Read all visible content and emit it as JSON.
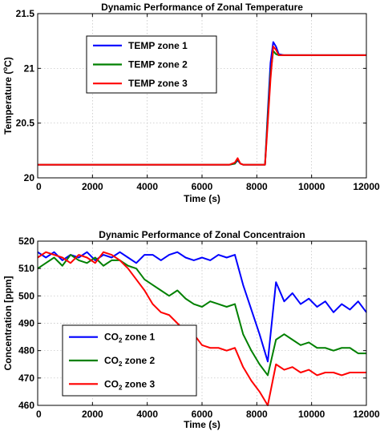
{
  "chart_data": [
    {
      "type": "line",
      "title": "Dynamic Performance of Zonal Temperature",
      "xlabel": "Time (s)",
      "ylabel": "Temperature (",
      "ylabel_sup": "o",
      "ylabel_tail": "C)",
      "xlim": [
        0,
        12000
      ],
      "ylim": [
        20,
        21.5
      ],
      "xticks": [
        0,
        2000,
        4000,
        6000,
        8000,
        10000,
        12000
      ],
      "xtick_labels": [
        "0",
        "2000",
        "4000",
        "6000",
        "8000",
        "10000",
        "12000"
      ],
      "yticks": [
        20,
        20.5,
        21,
        21.5
      ],
      "ytick_labels": [
        "20",
        "20.5",
        "21",
        "21.5"
      ],
      "grid": true,
      "legend_position": "upper-left",
      "series": [
        {
          "name": "TEMP zone 1",
          "color": "#0000ff",
          "x": [
            0,
            7000,
            7200,
            7300,
            7400,
            7500,
            8000,
            8300,
            8400,
            8500,
            8600,
            8700,
            8800,
            9000,
            12000
          ],
          "y": [
            20.12,
            20.12,
            20.13,
            20.16,
            20.13,
            20.12,
            20.12,
            20.12,
            20.6,
            21.05,
            21.24,
            21.2,
            21.13,
            21.12,
            21.12
          ]
        },
        {
          "name": "TEMP zone 2",
          "color": "#008000",
          "x": [
            0,
            7000,
            7200,
            7300,
            7400,
            7500,
            8000,
            8300,
            8400,
            8500,
            8600,
            8700,
            8800,
            9000,
            12000
          ],
          "y": [
            20.12,
            20.12,
            20.13,
            20.17,
            20.13,
            20.12,
            20.12,
            20.12,
            20.55,
            20.95,
            21.16,
            21.13,
            21.12,
            21.12,
            21.12
          ]
        },
        {
          "name": "TEMP zone 3",
          "color": "#ff0000",
          "x": [
            0,
            7000,
            7200,
            7300,
            7400,
            7500,
            8000,
            8300,
            8400,
            8500,
            8600,
            8700,
            8800,
            9000,
            12000
          ],
          "y": [
            20.12,
            20.12,
            20.14,
            20.18,
            20.13,
            20.12,
            20.12,
            20.12,
            20.5,
            20.9,
            21.2,
            21.17,
            21.12,
            21.12,
            21.12
          ]
        }
      ]
    },
    {
      "type": "line",
      "title": "Dynamic Performance of Zonal Concentraion",
      "xlabel": "Time (s)",
      "ylabel": "Concentration [ppm]",
      "xlim": [
        0,
        12000
      ],
      "ylim": [
        460,
        520
      ],
      "xticks": [
        0,
        2000,
        4000,
        6000,
        8000,
        10000,
        12000
      ],
      "xtick_labels": [
        "0",
        "2000",
        "4000",
        "6000",
        "8000",
        "10000",
        "12000"
      ],
      "yticks": [
        460,
        470,
        480,
        490,
        500,
        510,
        520
      ],
      "ytick_labels": [
        "460",
        "470",
        "480",
        "490",
        "500",
        "510",
        "520"
      ],
      "grid": true,
      "legend_position": "lower-left",
      "series": [
        {
          "name": "CO",
          "name_sub": "2",
          "name_tail": " zone 1",
          "color": "#0000ff",
          "x": [
            0,
            300,
            600,
            900,
            1200,
            1500,
            1800,
            2100,
            2400,
            2700,
            3000,
            3300,
            3600,
            3900,
            4200,
            4500,
            4800,
            5100,
            5400,
            5700,
            6000,
            6300,
            6600,
            6900,
            7200,
            7500,
            7800,
            8100,
            8400,
            8700,
            9000,
            9300,
            9600,
            9900,
            10200,
            10500,
            10800,
            11100,
            11400,
            11700,
            12000
          ],
          "y": [
            516,
            514,
            516,
            513,
            515,
            514,
            516,
            513,
            515,
            514,
            516,
            514,
            512,
            515,
            515,
            513,
            515,
            516,
            514,
            513,
            514,
            513,
            515,
            514,
            515,
            504,
            495,
            486,
            476,
            505,
            498,
            501,
            497,
            499,
            496,
            498,
            494,
            497,
            495,
            498,
            494
          ]
        },
        {
          "name": "CO",
          "name_sub": "2",
          "name_tail": " zone 2",
          "color": "#008000",
          "x": [
            0,
            300,
            600,
            900,
            1200,
            1500,
            1800,
            2100,
            2400,
            2700,
            3000,
            3300,
            3600,
            3900,
            4200,
            4500,
            4800,
            5100,
            5400,
            5700,
            6000,
            6300,
            6600,
            6900,
            7200,
            7500,
            7800,
            8100,
            8400,
            8700,
            9000,
            9300,
            9600,
            9900,
            10200,
            10500,
            10800,
            11100,
            11400,
            11700,
            12000
          ],
          "y": [
            510,
            512,
            514,
            511,
            515,
            513,
            512,
            514,
            511,
            513,
            513,
            511,
            510,
            506,
            504,
            502,
            500,
            502,
            499,
            497,
            496,
            498,
            497,
            496,
            497,
            486,
            480,
            475,
            471,
            484,
            486,
            484,
            482,
            483,
            481,
            481,
            480,
            481,
            481,
            479,
            479
          ]
        },
        {
          "name": "CO",
          "name_sub": "2",
          "name_tail": " zone 3",
          "color": "#ff0000",
          "x": [
            0,
            300,
            600,
            900,
            1200,
            1500,
            1800,
            2100,
            2400,
            2700,
            3000,
            3300,
            3600,
            3900,
            4200,
            4500,
            4800,
            5100,
            5400,
            5700,
            6000,
            6300,
            6600,
            6900,
            7200,
            7500,
            7800,
            8100,
            8400,
            8700,
            9000,
            9300,
            9600,
            9900,
            10200,
            10500,
            10800,
            11100,
            11400,
            11700,
            12000
          ],
          "y": [
            514,
            516,
            515,
            514,
            512,
            515,
            514,
            512,
            516,
            515,
            513,
            510,
            506,
            502,
            497,
            494,
            493,
            490,
            487,
            486,
            482,
            481,
            481,
            480,
            481,
            474,
            469,
            465,
            460,
            475,
            473,
            474,
            472,
            473,
            471,
            472,
            472,
            471,
            472,
            472,
            472
          ]
        }
      ]
    }
  ]
}
